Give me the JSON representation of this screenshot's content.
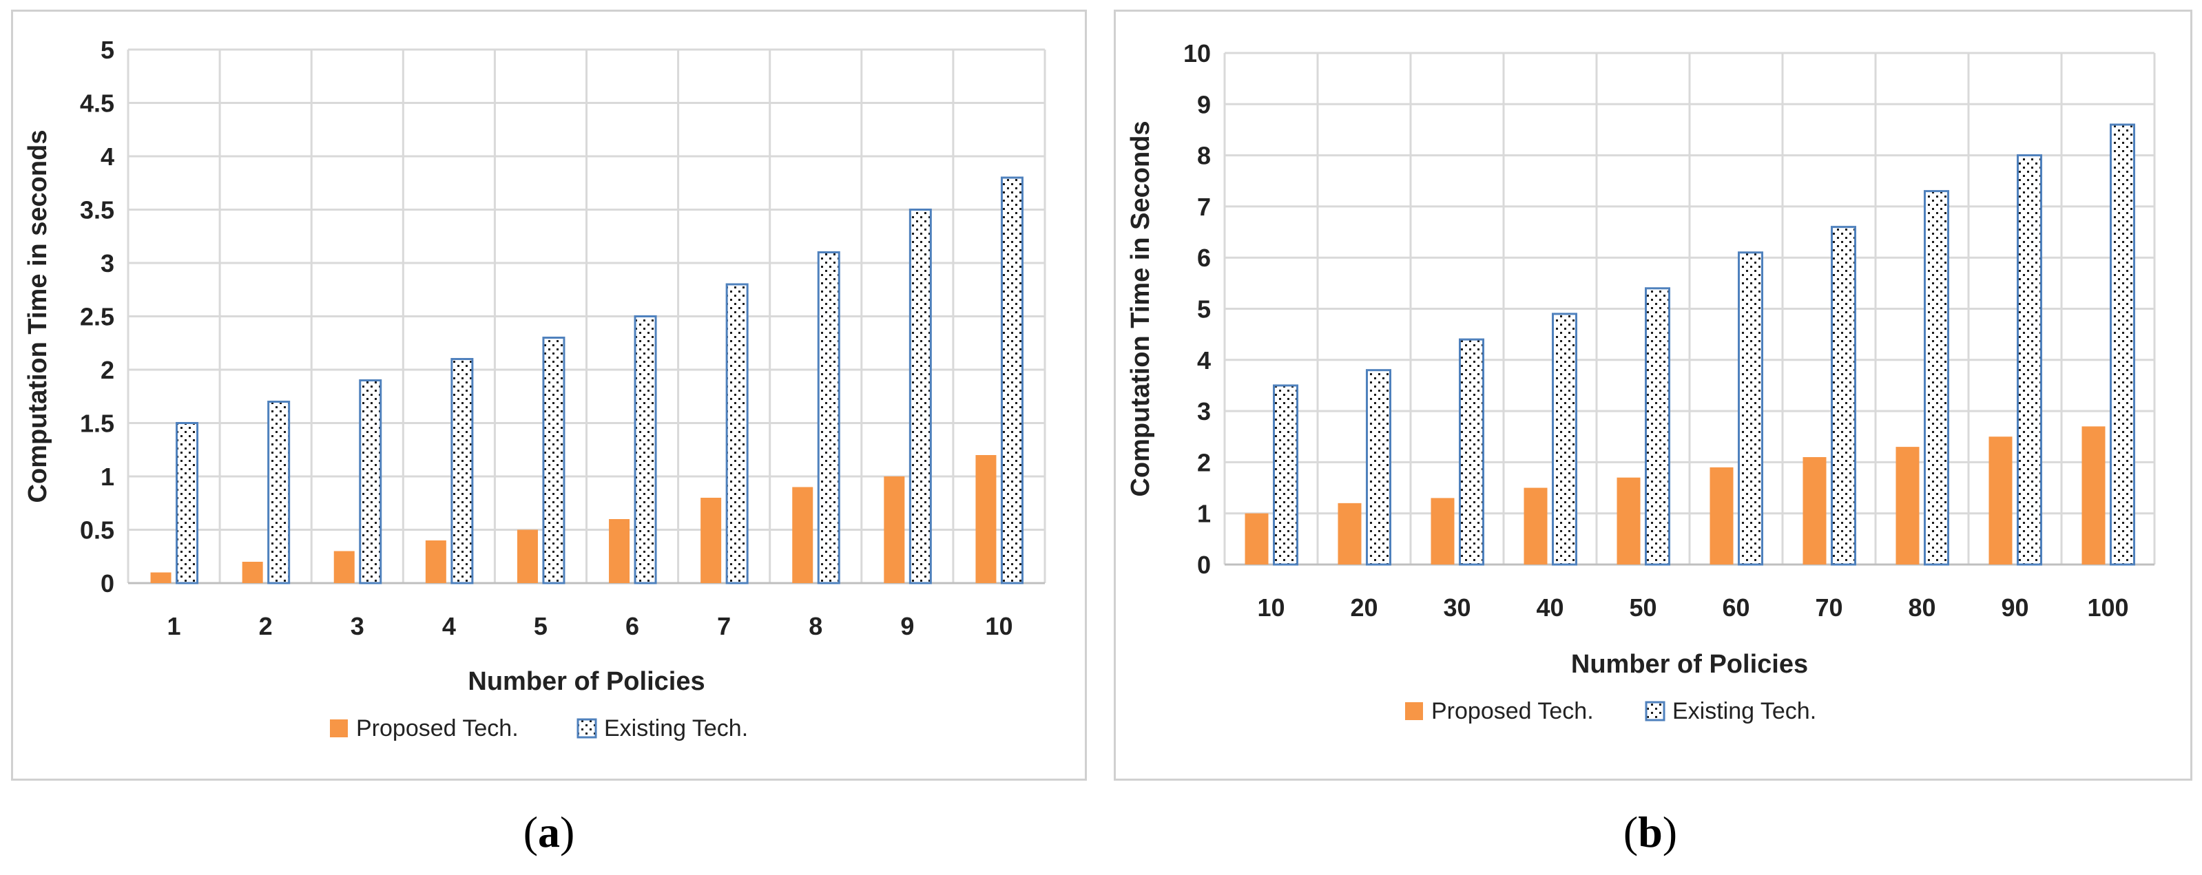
{
  "chart_data": [
    {
      "id": "a",
      "type": "bar",
      "subfigure_label": "a",
      "xlabel": "Number of Policies",
      "ylabel": "Computation Time in seconds",
      "categories": [
        "1",
        "2",
        "3",
        "4",
        "5",
        "6",
        "7",
        "8",
        "9",
        "10"
      ],
      "ylim": [
        0,
        5
      ],
      "yticks": [
        "0",
        "0.5",
        "1",
        "1.5",
        "2",
        "2.5",
        "3",
        "3.5",
        "4",
        "4.5",
        "5"
      ],
      "ytick_values": [
        0,
        0.5,
        1,
        1.5,
        2,
        2.5,
        3,
        3.5,
        4,
        4.5,
        5
      ],
      "grid": true,
      "legend_position": "bottom",
      "series": [
        {
          "name": "Proposed Tech.",
          "values": [
            0.1,
            0.2,
            0.3,
            0.4,
            0.5,
            0.6,
            0.8,
            0.9,
            1.0,
            1.2
          ],
          "style": "solid",
          "color": "#f79646"
        },
        {
          "name": "Existing Tech.",
          "values": [
            1.5,
            1.7,
            1.9,
            2.1,
            2.3,
            2.5,
            2.8,
            3.1,
            3.5,
            3.8
          ],
          "style": "dotted",
          "color": "#4f81bd"
        }
      ]
    },
    {
      "id": "b",
      "type": "bar",
      "subfigure_label": "b",
      "xlabel": "Number of Policies",
      "ylabel": "Computation Time in Seconds",
      "categories": [
        "10",
        "20",
        "30",
        "40",
        "50",
        "60",
        "70",
        "80",
        "90",
        "100"
      ],
      "ylim": [
        0,
        10
      ],
      "yticks": [
        "0",
        "1",
        "2",
        "3",
        "4",
        "5",
        "6",
        "7",
        "8",
        "9",
        "10"
      ],
      "ytick_values": [
        0,
        1,
        2,
        3,
        4,
        5,
        6,
        7,
        8,
        9,
        10
      ],
      "grid": true,
      "legend_position": "bottom",
      "series": [
        {
          "name": "Proposed Tech.",
          "values": [
            1.0,
            1.2,
            1.3,
            1.5,
            1.7,
            1.9,
            2.1,
            2.3,
            2.5,
            2.7
          ],
          "style": "solid",
          "color": "#f79646"
        },
        {
          "name": "Existing Tech.",
          "values": [
            3.5,
            3.8,
            4.4,
            4.9,
            5.4,
            6.1,
            6.6,
            7.3,
            8.0,
            8.6
          ],
          "style": "dotted",
          "color": "#4f81bd"
        }
      ]
    }
  ]
}
